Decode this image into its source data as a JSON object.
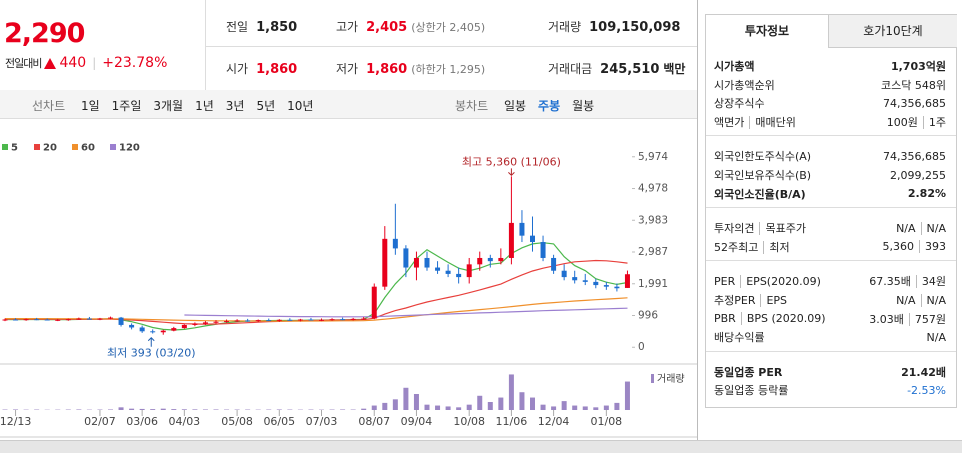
{
  "quote": {
    "price": "2,290",
    "change_label": "전일대비",
    "change": "440",
    "change_pct": "+23.78%",
    "color": "#e8001c"
  },
  "summary": [
    {
      "label": "전일",
      "value": "1,850"
    },
    {
      "label": "고가",
      "value": "2,405",
      "note": "(상한가 2,405)",
      "color": "#e8001c"
    },
    {
      "label": "거래량",
      "value": "109,150,098"
    },
    {
      "label": "시가",
      "value": "1,860",
      "color": "#e8001c"
    },
    {
      "label": "저가",
      "value": "1,860",
      "note": "(하한가 1,295)",
      "color": "#e8001c"
    },
    {
      "label": "거래대금",
      "value": "245,510",
      "unit": "백만"
    }
  ],
  "toolbar": {
    "line_label": "선차트",
    "line_periods": [
      "1일",
      "1주일",
      "3개월",
      "1년",
      "3년",
      "5년",
      "10년"
    ],
    "candle_label": "봉차트",
    "candle_periods": [
      "일봉",
      "주봉",
      "월봉"
    ],
    "selected_candle": 1
  },
  "chart_data": {
    "type": "candlestick",
    "categories": [
      null,
      "12/13",
      null,
      null,
      null,
      null,
      null,
      null,
      null,
      "02/07",
      null,
      null,
      null,
      "03/06",
      null,
      null,
      null,
      "04/03",
      null,
      null,
      null,
      null,
      "05/08",
      null,
      null,
      null,
      "06/05",
      null,
      null,
      null,
      "07/03",
      null,
      null,
      null,
      null,
      "08/07",
      null,
      null,
      null,
      "09/04",
      null,
      null,
      null,
      null,
      "10/08",
      null,
      null,
      null,
      "11/06",
      null,
      null,
      null,
      "12/04",
      null,
      null,
      null,
      null,
      "01/08",
      null,
      null
    ],
    "open": [
      850,
      870,
      860,
      880,
      870,
      850,
      860,
      880,
      900,
      880,
      900,
      930,
      700,
      620,
      500,
      470,
      520,
      600,
      700,
      740,
      780,
      800,
      820,
      840,
      820,
      850,
      830,
      860,
      840,
      870,
      850,
      860,
      880,
      870,
      890,
      900,
      1900,
      3400,
      3100,
      2500,
      2800,
      2500,
      2400,
      2300,
      2200,
      2600,
      2800,
      2700,
      2800,
      3900,
      3500,
      3300,
      2800,
      2400,
      2200,
      2100,
      2050,
      1950,
      1900,
      1860
    ],
    "high": [
      900,
      910,
      900,
      920,
      900,
      890,
      900,
      930,
      950,
      920,
      960,
      950,
      750,
      680,
      560,
      550,
      640,
      720,
      780,
      820,
      850,
      870,
      880,
      890,
      870,
      900,
      880,
      910,
      890,
      920,
      900,
      910,
      930,
      920,
      950,
      2000,
      3800,
      4500,
      3200,
      3000,
      3000,
      2700,
      2600,
      2500,
      2800,
      3000,
      2900,
      3100,
      5360,
      4300,
      4100,
      3500,
      2900,
      2600,
      2400,
      2300,
      2150,
      2050,
      2000,
      2405
    ],
    "low": [
      820,
      840,
      830,
      850,
      840,
      820,
      830,
      860,
      870,
      850,
      880,
      650,
      560,
      450,
      430,
      393,
      500,
      580,
      660,
      700,
      740,
      770,
      790,
      800,
      790,
      820,
      800,
      830,
      810,
      840,
      820,
      830,
      850,
      840,
      860,
      880,
      1800,
      2900,
      2200,
      2100,
      2400,
      2300,
      2200,
      2000,
      2000,
      2400,
      2500,
      2600,
      2600,
      3300,
      3000,
      2700,
      2300,
      2100,
      2000,
      1950,
      1850,
      1800,
      1750,
      1860
    ],
    "close": [
      870,
      860,
      880,
      870,
      850,
      860,
      880,
      900,
      880,
      900,
      930,
      700,
      620,
      500,
      470,
      520,
      600,
      700,
      740,
      780,
      800,
      820,
      840,
      820,
      850,
      830,
      860,
      840,
      870,
      850,
      860,
      880,
      870,
      890,
      900,
      1900,
      3400,
      3100,
      2500,
      2800,
      2500,
      2400,
      2300,
      2200,
      2600,
      2800,
      2700,
      2800,
      3900,
      3500,
      3300,
      2800,
      2400,
      2200,
      2100,
      2050,
      1950,
      1900,
      1850,
      2290
    ],
    "up_color": "#e8001c",
    "down_color": "#1e6fd0",
    "series": [
      {
        "name": "5",
        "color": "#4cb84c",
        "values": [
          870,
          868,
          870,
          872,
          868,
          864,
          866,
          872,
          878,
          884,
          898,
          860,
          800,
          720,
          620,
          560,
          540,
          560,
          610,
          670,
          720,
          770,
          800,
          820,
          830,
          835,
          838,
          840,
          845,
          850,
          852,
          855,
          860,
          868,
          878,
          1060,
          1560,
          1990,
          2330,
          2780,
          3060,
          2860,
          2660,
          2480,
          2400,
          2480,
          2600,
          2640,
          2940,
          3120,
          3240,
          3280,
          3240,
          2840,
          2560,
          2400,
          2150,
          2040,
          1970,
          2030
        ]
      },
      {
        "name": "20",
        "color": "#e8403c",
        "values": [
          880,
          880,
          879,
          878,
          877,
          876,
          876,
          877,
          878,
          879,
          880,
          870,
          855,
          835,
          810,
          785,
          760,
          740,
          730,
          725,
          730,
          740,
          755,
          770,
          785,
          800,
          812,
          822,
          830,
          838,
          845,
          850,
          855,
          860,
          865,
          910,
          1040,
          1150,
          1230,
          1330,
          1420,
          1490,
          1560,
          1630,
          1710,
          1800,
          1890,
          1980,
          2130,
          2270,
          2390,
          2480,
          2550,
          2620,
          2680,
          2700,
          2720,
          2710,
          2680,
          2640
        ]
      },
      {
        "name": "60",
        "color": "#f0902c",
        "values": [
          900,
          900,
          899,
          898,
          897,
          896,
          895,
          894,
          893,
          892,
          891,
          888,
          882,
          875,
          866,
          858,
          850,
          844,
          838,
          834,
          830,
          828,
          826,
          824,
          822,
          821,
          820,
          820,
          821,
          822,
          824,
          826,
          828,
          830,
          833,
          850,
          880,
          915,
          950,
          985,
          1020,
          1055,
          1090,
          1120,
          1150,
          1180,
          1210,
          1240,
          1275,
          1310,
          1345,
          1375,
          1400,
          1425,
          1450,
          1470,
          1490,
          1510,
          1530,
          1550
        ]
      },
      {
        "name": "120",
        "color": "#9b7fd0",
        "values": [
          null,
          null,
          null,
          null,
          null,
          null,
          null,
          null,
          null,
          null,
          null,
          null,
          null,
          null,
          null,
          null,
          null,
          1010,
          1005,
          1000,
          995,
          990,
          985,
          980,
          976,
          972,
          968,
          965,
          962,
          960,
          958,
          956,
          955,
          954,
          954,
          960,
          970,
          982,
          995,
          1008,
          1020,
          1032,
          1044,
          1055,
          1066,
          1077,
          1088,
          1099,
          1110,
          1122,
          1134,
          1145,
          1155,
          1165,
          1175,
          1185,
          1195,
          1205,
          1215,
          1225
        ]
      }
    ],
    "ylim": [
      -400,
      6500
    ],
    "yticks": [
      0,
      996,
      {
        "value": 1991,
        "label": "1,991"
      },
      {
        "value": 2987,
        "label": "2,987"
      },
      {
        "value": 3983,
        "label": "3,983"
      },
      {
        "value": 4978,
        "label": "4,978"
      },
      {
        "value": 5974,
        "label": "5,974"
      }
    ],
    "annotations": {
      "high": "최고 5,360 (11/06)",
      "low": "최저 393 (03/20)"
    },
    "volume": {
      "name": "거래량",
      "color": "#9b86c4",
      "ylim": [
        0,
        45
      ],
      "values": [
        0.5,
        0.6,
        0.4,
        0.5,
        0.3,
        0.4,
        0.5,
        0.6,
        0.4,
        0.5,
        0.6,
        3,
        1.5,
        1.2,
        1,
        1.5,
        1,
        0.8,
        0.7,
        0.6,
        0.6,
        0.5,
        0.5,
        0.5,
        0.4,
        0.5,
        0.6,
        0.5,
        0.4,
        0.5,
        0.4,
        0.5,
        0.6,
        0.5,
        1.5,
        5,
        8,
        12,
        25,
        18,
        6,
        5,
        4,
        3,
        6,
        16,
        9,
        14,
        40,
        20,
        14,
        6,
        4,
        10,
        5,
        4,
        3,
        5,
        8,
        32
      ]
    }
  },
  "info": {
    "tabs": [
      "투자정보",
      "호가10단계"
    ],
    "active_tab": 0,
    "groups": [
      [
        {
          "labels": [
            "시가총액"
          ],
          "values": [
            "1,703억원"
          ],
          "bold": true
        },
        {
          "labels": [
            "시가총액순위"
          ],
          "values": [
            "코스닥 548위"
          ]
        },
        {
          "labels": [
            "상장주식수"
          ],
          "values": [
            "74,356,685"
          ]
        },
        {
          "labels": [
            "액면가",
            "매매단위"
          ],
          "values": [
            "100원",
            "1주"
          ]
        }
      ],
      [
        {
          "labels": [
            "외국인한도주식수(A)"
          ],
          "values": [
            "74,356,685"
          ]
        },
        {
          "labels": [
            "외국인보유주식수(B)"
          ],
          "values": [
            "2,099,255"
          ]
        },
        {
          "labels": [
            "외국인소진율(B/A)"
          ],
          "values": [
            "2.82%"
          ],
          "bold": true
        }
      ],
      [
        {
          "labels": [
            "투자의견",
            "목표주가"
          ],
          "values": [
            "N/A",
            "N/A"
          ]
        },
        {
          "labels": [
            "52주최고",
            "최저"
          ],
          "values": [
            "5,360",
            "393"
          ]
        }
      ],
      [
        {
          "labels": [
            "PER",
            "EPS(2020.09)"
          ],
          "values": [
            "67.35배",
            "34원"
          ]
        },
        {
          "labels": [
            "추정PER",
            "EPS"
          ],
          "values": [
            "N/A",
            "N/A"
          ]
        },
        {
          "labels": [
            "PBR",
            "BPS (2020.09)"
          ],
          "values": [
            "3.03배",
            "757원"
          ]
        },
        {
          "labels": [
            "배당수익률"
          ],
          "values": [
            "N/A"
          ]
        }
      ],
      [
        {
          "labels": [
            "동일업종 PER"
          ],
          "values": [
            "21.42배"
          ],
          "bold": true
        },
        {
          "labels": [
            "동일업종 등락률"
          ],
          "values": [
            "-2.53%"
          ],
          "color": "#1e6fd0"
        }
      ]
    ]
  }
}
